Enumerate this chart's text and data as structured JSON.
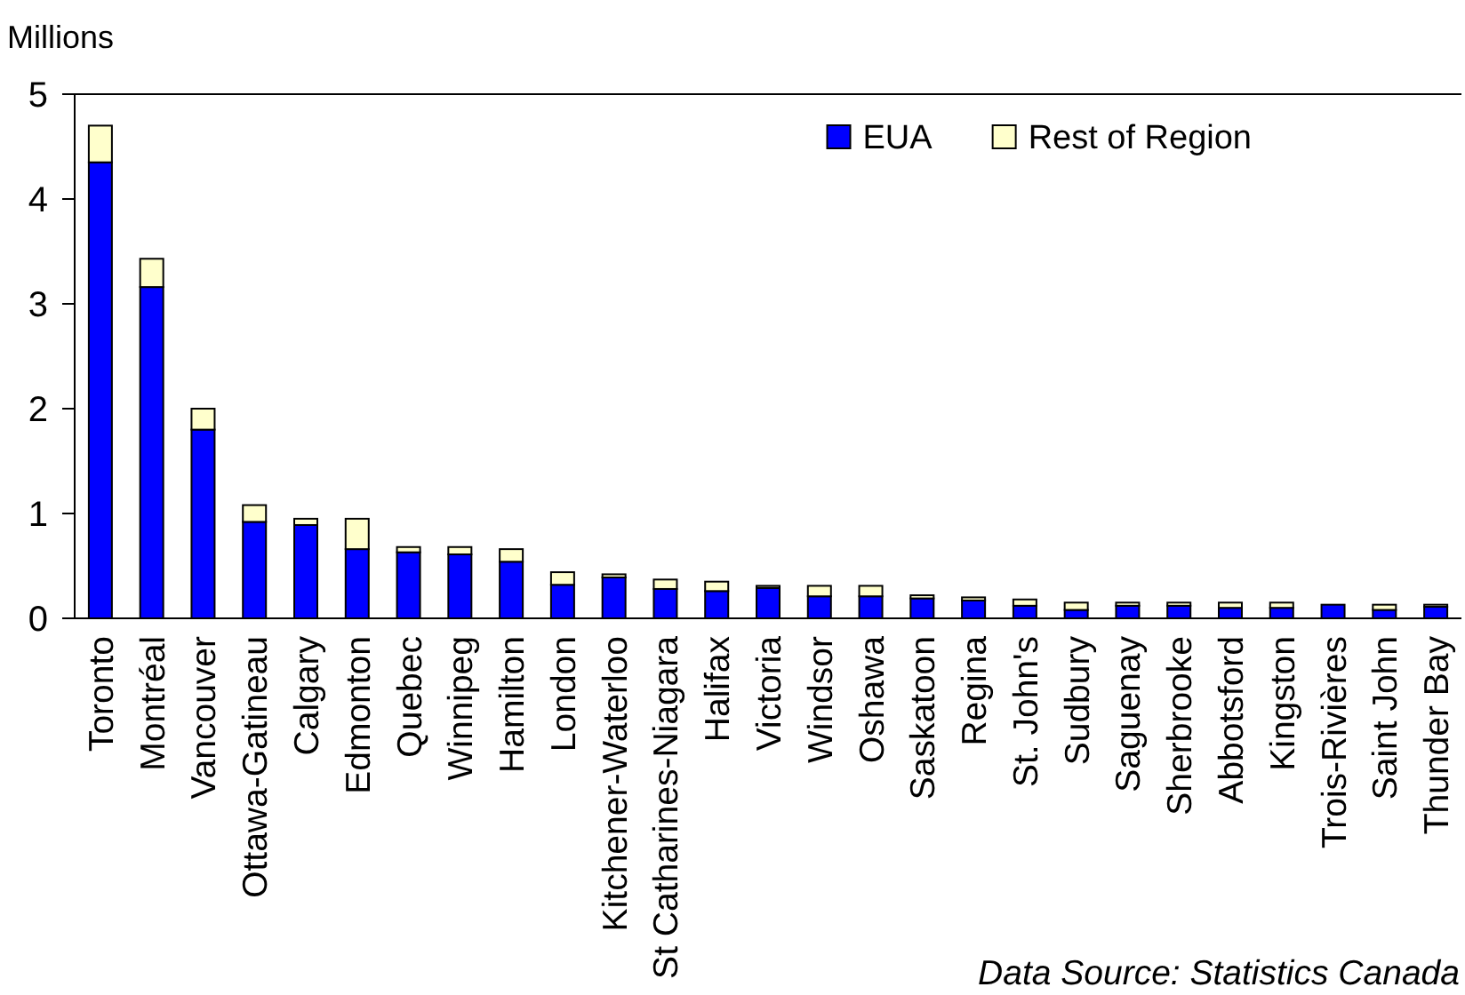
{
  "chart_data": {
    "type": "bar",
    "ylabel": "Millions",
    "stacked": true,
    "legend": "top right",
    "ylim": [
      0,
      5
    ],
    "yticks": [
      0,
      1,
      2,
      3,
      4,
      5
    ],
    "categories": [
      "Toronto",
      "Montréal",
      "Vancouver",
      "Ottawa-Gatineau",
      "Calgary",
      "Edmonton",
      "Quebec",
      "Winnipeg",
      "Hamilton",
      "London",
      "Kitchener-Waterloo",
      "St Catharines-Niagara",
      "Halifax",
      "Victoria",
      "Windsor",
      "Oshawa",
      "Saskatoon",
      "Regina",
      "St. John's",
      "Sudbury",
      "Saguenay",
      "Sherbrooke",
      "Abbotsford",
      "Kingston",
      "Trois-Rivières",
      "Saint John",
      "Thunder Bay"
    ],
    "series": [
      {
        "name": "EUA",
        "color": "#0000ff",
        "values": [
          4.35,
          3.16,
          1.8,
          0.92,
          0.89,
          0.66,
          0.63,
          0.61,
          0.54,
          0.32,
          0.39,
          0.28,
          0.26,
          0.29,
          0.21,
          0.21,
          0.19,
          0.17,
          0.12,
          0.08,
          0.12,
          0.12,
          0.1,
          0.1,
          0.13,
          0.08,
          0.11
        ]
      },
      {
        "name": "Rest of Region",
        "color": "#ffffcc",
        "values": [
          0.35,
          0.27,
          0.2,
          0.16,
          0.06,
          0.29,
          0.05,
          0.07,
          0.12,
          0.12,
          0.03,
          0.09,
          0.09,
          0.02,
          0.1,
          0.1,
          0.03,
          0.03,
          0.06,
          0.07,
          0.03,
          0.03,
          0.05,
          0.05,
          0,
          0.05,
          0.02
        ]
      }
    ],
    "annotations": [
      "Data Source: Statistics Canada"
    ]
  }
}
